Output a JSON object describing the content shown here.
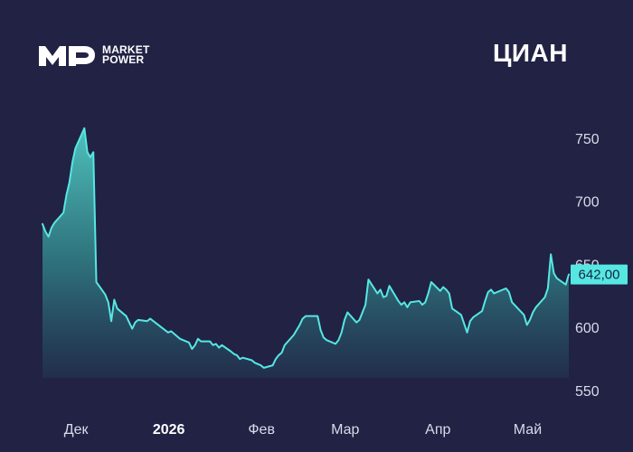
{
  "brand": {
    "logo_name": "mp-logo",
    "line1": "MARKET",
    "line2": "POWER"
  },
  "title": "ЦИАН",
  "colors": {
    "background": "#212244",
    "line": "#56e7e2",
    "fill_top": "#4fc4bf",
    "fill_bottom": "#22314f",
    "axis_text": "#d9dbea",
    "label_bg": "#56e7e2",
    "label_text": "#172342"
  },
  "chart_data": {
    "type": "area",
    "title": "ЦИАН",
    "xlabel": "",
    "ylabel": "",
    "xlim": [
      "2025-11-24",
      "2026-05-19"
    ],
    "ylim": [
      550,
      760
    ],
    "y_ticks": [
      {
        "value": 550,
        "label": "550"
      },
      {
        "value": 600,
        "label": "600"
      },
      {
        "value": 650,
        "label": "650"
      },
      {
        "value": 700,
        "label": "700"
      },
      {
        "value": 750,
        "label": "750"
      }
    ],
    "x_ticks": [
      {
        "date": "2025-12-01",
        "label": "Дек",
        "bold": false
      },
      {
        "date": "2026-01-01",
        "label": "2026",
        "bold": true
      },
      {
        "date": "2026-02-01",
        "label": "Фев",
        "bold": false
      },
      {
        "date": "2026-03-01",
        "label": "Мар",
        "bold": false
      },
      {
        "date": "2026-04-01",
        "label": "Апр",
        "bold": false
      },
      {
        "date": "2026-05-01",
        "label": "Май",
        "bold": false
      }
    ],
    "last_value": 642.0,
    "last_label": "642,00",
    "series": [
      {
        "values": [
          {
            "x": "2025-11-24",
            "y": 682
          },
          {
            "x": "2025-11-25",
            "y": 676
          },
          {
            "x": "2025-11-26",
            "y": 672
          },
          {
            "x": "2025-11-27",
            "y": 679
          },
          {
            "x": "2025-11-28",
            "y": 683
          },
          {
            "x": "2025-12-01",
            "y": 691
          },
          {
            "x": "2025-12-02",
            "y": 705
          },
          {
            "x": "2025-12-03",
            "y": 715
          },
          {
            "x": "2025-12-04",
            "y": 731
          },
          {
            "x": "2025-12-05",
            "y": 742
          },
          {
            "x": "2025-12-08",
            "y": 758
          },
          {
            "x": "2025-12-09",
            "y": 739
          },
          {
            "x": "2025-12-10",
            "y": 735
          },
          {
            "x": "2025-12-11",
            "y": 739
          },
          {
            "x": "2025-12-12",
            "y": 636
          },
          {
            "x": "2025-12-15",
            "y": 626
          },
          {
            "x": "2025-12-16",
            "y": 620
          },
          {
            "x": "2025-12-17",
            "y": 605
          },
          {
            "x": "2025-12-18",
            "y": 622
          },
          {
            "x": "2025-12-19",
            "y": 615
          },
          {
            "x": "2025-12-22",
            "y": 609
          },
          {
            "x": "2025-12-23",
            "y": 604
          },
          {
            "x": "2025-12-24",
            "y": 599
          },
          {
            "x": "2025-12-25",
            "y": 604
          },
          {
            "x": "2025-12-26",
            "y": 606
          },
          {
            "x": "2025-12-29",
            "y": 605
          },
          {
            "x": "2025-12-30",
            "y": 607
          },
          {
            "x": "2026-01-05",
            "y": 596
          },
          {
            "x": "2026-01-06",
            "y": 597
          },
          {
            "x": "2026-01-08",
            "y": 593
          },
          {
            "x": "2026-01-09",
            "y": 591
          },
          {
            "x": "2026-01-12",
            "y": 588
          },
          {
            "x": "2026-01-13",
            "y": 583
          },
          {
            "x": "2026-01-14",
            "y": 586
          },
          {
            "x": "2026-01-15",
            "y": 591
          },
          {
            "x": "2026-01-16",
            "y": 589
          },
          {
            "x": "2026-01-19",
            "y": 589
          },
          {
            "x": "2026-01-20",
            "y": 586
          },
          {
            "x": "2026-01-21",
            "y": 587
          },
          {
            "x": "2026-01-22",
            "y": 584
          },
          {
            "x": "2026-01-23",
            "y": 586
          },
          {
            "x": "2026-01-26",
            "y": 581
          },
          {
            "x": "2026-01-27",
            "y": 579
          },
          {
            "x": "2026-01-28",
            "y": 578
          },
          {
            "x": "2026-01-29",
            "y": 575
          },
          {
            "x": "2026-01-30",
            "y": 576
          },
          {
            "x": "2026-02-02",
            "y": 574
          },
          {
            "x": "2026-02-03",
            "y": 572
          },
          {
            "x": "2026-02-04",
            "y": 571
          },
          {
            "x": "2026-02-05",
            "y": 570
          },
          {
            "x": "2026-02-06",
            "y": 568
          },
          {
            "x": "2026-02-09",
            "y": 570
          },
          {
            "x": "2026-02-10",
            "y": 575
          },
          {
            "x": "2026-02-11",
            "y": 578
          },
          {
            "x": "2026-02-12",
            "y": 580
          },
          {
            "x": "2026-02-13",
            "y": 586
          },
          {
            "x": "2026-02-16",
            "y": 594
          },
          {
            "x": "2026-02-17",
            "y": 598
          },
          {
            "x": "2026-02-18",
            "y": 602
          },
          {
            "x": "2026-02-19",
            "y": 607
          },
          {
            "x": "2026-02-20",
            "y": 609
          },
          {
            "x": "2026-02-24",
            "y": 609
          },
          {
            "x": "2026-02-25",
            "y": 598
          },
          {
            "x": "2026-02-26",
            "y": 592
          },
          {
            "x": "2026-02-27",
            "y": 590
          },
          {
            "x": "2026-03-02",
            "y": 587
          },
          {
            "x": "2026-03-03",
            "y": 590
          },
          {
            "x": "2026-03-04",
            "y": 596
          },
          {
            "x": "2026-03-05",
            "y": 606
          },
          {
            "x": "2026-03-06",
            "y": 612
          },
          {
            "x": "2026-03-09",
            "y": 604
          },
          {
            "x": "2026-03-10",
            "y": 606
          },
          {
            "x": "2026-03-11",
            "y": 612
          },
          {
            "x": "2026-03-12",
            "y": 618
          },
          {
            "x": "2026-03-13",
            "y": 638
          },
          {
            "x": "2026-03-16",
            "y": 627
          },
          {
            "x": "2026-03-17",
            "y": 630
          },
          {
            "x": "2026-03-18",
            "y": 624
          },
          {
            "x": "2026-03-19",
            "y": 625
          },
          {
            "x": "2026-03-20",
            "y": 633
          },
          {
            "x": "2026-03-23",
            "y": 621
          },
          {
            "x": "2026-03-24",
            "y": 618
          },
          {
            "x": "2026-03-25",
            "y": 620
          },
          {
            "x": "2026-03-26",
            "y": 616
          },
          {
            "x": "2026-03-27",
            "y": 620
          },
          {
            "x": "2026-03-30",
            "y": 621
          },
          {
            "x": "2026-03-31",
            "y": 618
          },
          {
            "x": "2026-04-01",
            "y": 620
          },
          {
            "x": "2026-04-02",
            "y": 627
          },
          {
            "x": "2026-04-03",
            "y": 636
          },
          {
            "x": "2026-04-06",
            "y": 629
          },
          {
            "x": "2026-04-07",
            "y": 632
          },
          {
            "x": "2026-04-08",
            "y": 630
          },
          {
            "x": "2026-04-09",
            "y": 627
          },
          {
            "x": "2026-04-10",
            "y": 615
          },
          {
            "x": "2026-04-13",
            "y": 610
          },
          {
            "x": "2026-04-14",
            "y": 603
          },
          {
            "x": "2026-04-15",
            "y": 596
          },
          {
            "x": "2026-04-16",
            "y": 605
          },
          {
            "x": "2026-04-17",
            "y": 608
          },
          {
            "x": "2026-04-20",
            "y": 613
          },
          {
            "x": "2026-04-21",
            "y": 621
          },
          {
            "x": "2026-04-22",
            "y": 628
          },
          {
            "x": "2026-04-23",
            "y": 630
          },
          {
            "x": "2026-04-24",
            "y": 627
          },
          {
            "x": "2026-04-27",
            "y": 630
          },
          {
            "x": "2026-04-28",
            "y": 631
          },
          {
            "x": "2026-04-29",
            "y": 628
          },
          {
            "x": "2026-04-30",
            "y": 620
          },
          {
            "x": "2026-05-04",
            "y": 610
          },
          {
            "x": "2026-05-05",
            "y": 602
          },
          {
            "x": "2026-05-06",
            "y": 606
          },
          {
            "x": "2026-05-07",
            "y": 612
          },
          {
            "x": "2026-05-08",
            "y": 616
          },
          {
            "x": "2026-05-11",
            "y": 624
          },
          {
            "x": "2026-05-12",
            "y": 631
          },
          {
            "x": "2026-05-13",
            "y": 658
          },
          {
            "x": "2026-05-14",
            "y": 643
          },
          {
            "x": "2026-05-15",
            "y": 639
          },
          {
            "x": "2026-05-18",
            "y": 634
          },
          {
            "x": "2026-05-19",
            "y": 642
          }
        ]
      }
    ]
  }
}
